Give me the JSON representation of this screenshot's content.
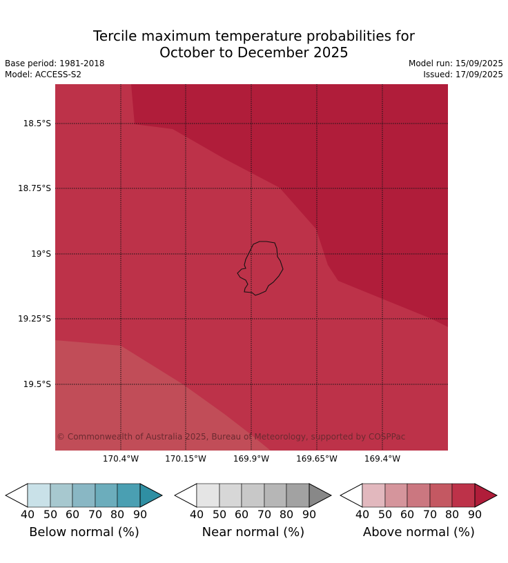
{
  "title_line1": "Tercile maximum temperature probabilities for",
  "title_line2": "October to December 2025",
  "base_period": "Base period: 1981-2018",
  "model": "Model: ACCESS-S2",
  "model_run": "Model run: 15/09/2025",
  "issued": "Issued: 17/09/2025",
  "copyright": "© Commonwealth of Australia 2025, Bureau of Meteorology, supported by COSPPac",
  "lat_labels": [
    "18.5°S",
    "18.75°S",
    "19°S",
    "19.25°S",
    "19.5°S"
  ],
  "lon_labels": [
    "170.4°W",
    "170.15°W",
    "169.9°W",
    "169.65°W",
    "169.4°W"
  ],
  "map_colors": {
    "above_90": "#b01d3a",
    "above_80": "#bd3249",
    "above_70": "#c14d58"
  },
  "colorbars": [
    {
      "label": "Below normal (%)",
      "ticks": [
        "40",
        "50",
        "60",
        "70",
        "80",
        "90"
      ],
      "colors": [
        "#c9e1e8",
        "#a7c8cf",
        "#89b7c4",
        "#6cadbc",
        "#4a9fb2",
        "#2f8fa3"
      ]
    },
    {
      "label": "Near normal (%)",
      "ticks": [
        "40",
        "50",
        "60",
        "70",
        "80",
        "90"
      ],
      "colors": [
        "#e5e5e5",
        "#d7d7d7",
        "#c8c8c8",
        "#b6b6b6",
        "#a2a2a2",
        "#888888"
      ]
    },
    {
      "label": "Above normal (%)",
      "ticks": [
        "40",
        "50",
        "60",
        "70",
        "80",
        "90"
      ],
      "colors": [
        "#e2b8be",
        "#d5959c",
        "#cb7780",
        "#c45862",
        "#bd3249",
        "#b01d3a"
      ]
    }
  ]
}
